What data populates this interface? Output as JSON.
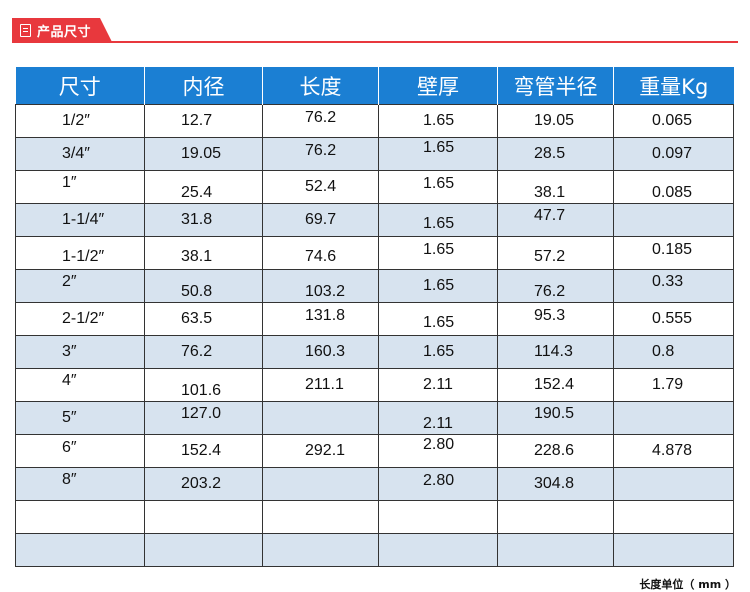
{
  "header": {
    "title": "产品尺寸",
    "icon": "document-icon",
    "accent": "#e8383d"
  },
  "table": {
    "header_bg": "#1b7fd3",
    "alt_row_bg": "#d7e3ef",
    "columns": [
      "尺寸",
      "内径",
      "长度",
      "壁厚",
      "弯管半径",
      "重量Kg"
    ],
    "rows": [
      [
        "1/2″",
        "12.7",
        "76.2",
        "1.65",
        "19.05",
        "0.065"
      ],
      [
        "3/4″",
        "19.05",
        "76.2",
        "1.65",
        "28.5",
        "0.097"
      ],
      [
        "1″",
        "25.4",
        "52.4",
        "1.65",
        "38.1",
        "0.085"
      ],
      [
        "1-1/4″",
        "31.8",
        "69.7",
        "1.65",
        "47.7",
        ""
      ],
      [
        "1-1/2″",
        "38.1",
        "74.6",
        "1.65",
        "57.2",
        "0.185"
      ],
      [
        "2″",
        "50.8",
        "103.2",
        "1.65",
        "76.2",
        "0.33"
      ],
      [
        "2-1/2″",
        "63.5",
        "131.8",
        "1.65",
        "95.3",
        "0.555"
      ],
      [
        "3″",
        "76.2",
        "160.3",
        "1.65",
        "114.3",
        "0.8"
      ],
      [
        "4″",
        "101.6",
        "211.1",
        "2.11",
        "152.4",
        "1.79"
      ],
      [
        "5″",
        "127.0",
        "",
        "2.11",
        "190.5",
        ""
      ],
      [
        "6″",
        "152.4",
        "292.1",
        "2.80",
        "228.6",
        "4.878"
      ],
      [
        "8″",
        "203.2",
        "",
        "2.80",
        "304.8",
        ""
      ],
      [
        "",
        "",
        "",
        "",
        "",
        ""
      ],
      [
        "",
        "",
        "",
        "",
        "",
        ""
      ]
    ]
  },
  "unit_note": "长度单位（ mm ）"
}
